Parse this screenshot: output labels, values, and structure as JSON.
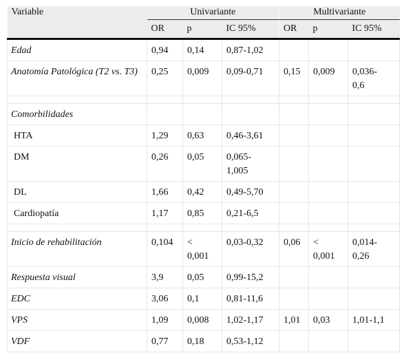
{
  "header": {
    "variable": "Variable",
    "groups": [
      "Univariante",
      "Multivariante"
    ],
    "columns": [
      "OR",
      "p",
      "IC 95%",
      "OR",
      "p",
      "IC 95%"
    ]
  },
  "sections": [
    {
      "rows": [
        {
          "label": "Edad",
          "cells": [
            "0,94",
            "0,14",
            "0,87-1,02",
            null,
            null,
            null
          ]
        },
        {
          "label": "Anatomía Patológica (T2 vs. T3)",
          "cells": [
            "0,25",
            "0,009",
            "0,09-0,71",
            "0,15",
            "0,009",
            "0,036-0,6"
          ]
        }
      ]
    },
    {
      "title": "Comorbilidades",
      "rows": [
        {
          "label": "HTA",
          "cells": [
            "1,29",
            "0,63",
            "0,46-3,61",
            null,
            null,
            null
          ]
        },
        {
          "label": "DM",
          "cells": [
            "0,26",
            "0,05",
            "0,065-1,005",
            null,
            null,
            null
          ]
        },
        {
          "label": "DL",
          "cells": [
            "1,66",
            "0,42",
            "0,49-5,70",
            null,
            null,
            null
          ]
        },
        {
          "label": "Cardiopatía",
          "cells": [
            "1,17",
            "0,85",
            "0,21-6,5",
            null,
            null,
            null
          ]
        }
      ]
    },
    {
      "rows": [
        {
          "label": "Inicio de rehabilitación",
          "cells": [
            "0,104",
            "< 0,001",
            "0,03-0,32",
            "0,06",
            "< 0,001",
            "0,014-0,26"
          ]
        },
        {
          "label": "Respuesta visual",
          "cells": [
            "3,9",
            "0,05",
            "0,99-15,2",
            null,
            null,
            null
          ]
        },
        {
          "label": "EDC",
          "cells": [
            "3,06",
            "0,1",
            "0,81-11,6",
            null,
            null,
            null
          ]
        },
        {
          "label": "VPS",
          "cells": [
            "1,09",
            "0,008",
            "1,02-1,17",
            "1,01",
            "0,03",
            "1,01-1,1"
          ]
        },
        {
          "label": "VDF",
          "cells": [
            "0,77",
            "0,18",
            "0,53-1,12",
            null,
            null,
            null
          ]
        }
      ]
    }
  ]
}
